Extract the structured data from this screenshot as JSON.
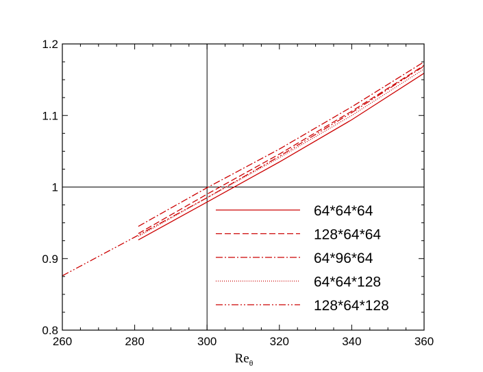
{
  "chart_data": {
    "type": "line",
    "title": "",
    "xlabel": "Re",
    "xlabel_subscript": "θ",
    "ylabel": "",
    "xlim": [
      260,
      360
    ],
    "ylim": [
      0.8,
      1.2
    ],
    "xticks": [
      "260",
      "280",
      "300",
      "320",
      "340",
      "360"
    ],
    "yticks": [
      "0.8",
      "0.9",
      "1",
      "1.1",
      "1.2"
    ],
    "reference_lines": {
      "x": 300,
      "y": 1.0
    },
    "grid": false,
    "legend_position": "bottom-right",
    "line_color": "#cc0000",
    "series": [
      {
        "name": "64*64*64",
        "style": "solid",
        "x": [
          281,
          300,
          320,
          340,
          360
        ],
        "y": [
          0.926,
          0.979,
          1.035,
          1.094,
          1.159
        ]
      },
      {
        "name": "128*64*64",
        "style": "dashed",
        "x": [
          281,
          300,
          320,
          340,
          360
        ],
        "y": [
          0.935,
          0.99,
          1.046,
          1.106,
          1.17
        ]
      },
      {
        "name": "64*96*64",
        "style": "dashdot",
        "x": [
          281,
          300,
          320,
          340,
          360
        ],
        "y": [
          0.945,
          0.999,
          1.053,
          1.112,
          1.175
        ]
      },
      {
        "name": "64*64*128",
        "style": "dotted",
        "x": [
          281,
          300,
          320,
          340,
          360
        ],
        "y": [
          0.931,
          0.985,
          1.041,
          1.1,
          1.165
        ]
      },
      {
        "name": "128*64*128",
        "style": "dashdotdot",
        "x": [
          260,
          280,
          300,
          320,
          340,
          360
        ],
        "y": [
          0.876,
          0.93,
          0.985,
          1.043,
          1.104,
          1.169
        ]
      }
    ]
  }
}
